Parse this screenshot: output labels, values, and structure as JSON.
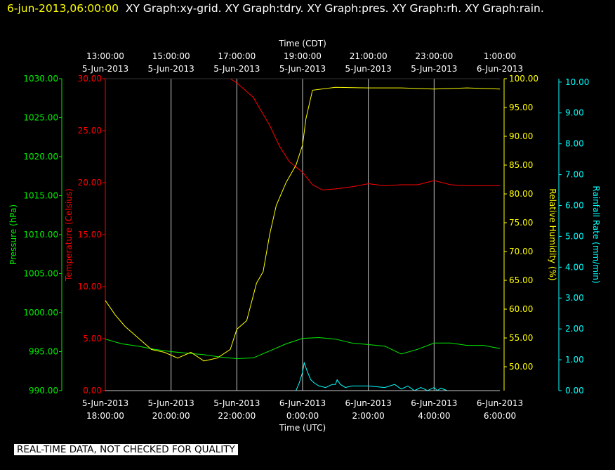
{
  "header": {
    "date": "6-jun-2013,06:00:00",
    "graphs": "XY Graph:xy-grid.  XY Graph:tdry.  XY Graph:pres.  XY Graph:rh.  XY Graph:rain."
  },
  "notice": "REAL-TIME DATA, NOT CHECKED FOR QUALITY",
  "colors": {
    "background": "#000000",
    "grid": "#c8c8c8",
    "temperature": "#ff0000",
    "pressure": "#00ee00",
    "humidity": "#ffff00",
    "rain": "#00ffff",
    "text": "#ffffff"
  },
  "chart_data": {
    "type": "line",
    "grid": true,
    "x_top": {
      "label": "Time (CDT)",
      "ticks": [
        [
          "13:00:00",
          "5-Jun-2013"
        ],
        [
          "15:00:00",
          "5-Jun-2013"
        ],
        [
          "17:00:00",
          "5-Jun-2013"
        ],
        [
          "19:00:00",
          "5-Jun-2013"
        ],
        [
          "21:00:00",
          "5-Jun-2013"
        ],
        [
          "23:00:00",
          "5-Jun-2013"
        ],
        [
          "1:00:00",
          "6-Jun-2013"
        ]
      ]
    },
    "x_bottom": {
      "label": "Time (UTC)",
      "ticks": [
        [
          "5-Jun-2013",
          "18:00:00"
        ],
        [
          "5-Jun-2013",
          "20:00:00"
        ],
        [
          "5-Jun-2013",
          "22:00:00"
        ],
        [
          "6-Jun-2013",
          "0:00:00"
        ],
        [
          "6-Jun-2013",
          "2:00:00"
        ],
        [
          "6-Jun-2013",
          "4:00:00"
        ],
        [
          "6-Jun-2013",
          "6:00:00"
        ]
      ]
    },
    "xlim_hours_utc": [
      18,
      30
    ],
    "series": [
      {
        "name": "Pressure (hPa)",
        "axis": "pressure",
        "ylim": [
          990,
          1030
        ],
        "ticks": [
          "990.00",
          "995.00",
          "1000.00",
          "1005.00",
          "1010.00",
          "1015.00",
          "1020.00",
          "1025.00",
          "1030.00"
        ],
        "x": [
          18.0,
          18.5,
          19.0,
          19.5,
          20.0,
          20.5,
          21.0,
          21.5,
          22.0,
          22.5,
          23.0,
          23.5,
          24.0,
          24.5,
          25.0,
          25.5,
          26.0,
          26.5,
          27.0,
          27.5,
          28.0,
          28.5,
          29.0,
          29.5,
          30.0
        ],
        "values": [
          996.6,
          996.0,
          995.7,
          995.3,
          995.0,
          994.8,
          994.6,
          994.3,
          994.1,
          994.2,
          995.1,
          996.0,
          996.7,
          996.8,
          996.6,
          996.1,
          995.9,
          995.7,
          994.7,
          995.3,
          996.1,
          996.1,
          995.8,
          995.8,
          995.4
        ]
      },
      {
        "name": "Temperature (Celsius)",
        "axis": "temperature",
        "ylim": [
          0,
          30
        ],
        "ticks": [
          "0.00",
          "5.00",
          "10.00",
          "15.00",
          "20.00",
          "25.00",
          "30.00"
        ],
        "x": [
          21.8,
          22.0,
          22.5,
          23.0,
          23.3,
          23.6,
          24.0,
          24.3,
          24.6,
          25.0,
          25.5,
          26.0,
          26.5,
          27.0,
          27.5,
          28.0,
          28.5,
          29.0,
          29.5,
          30.0
        ],
        "values": [
          30.0,
          29.6,
          28.2,
          25.5,
          23.5,
          22.0,
          21.0,
          19.8,
          19.3,
          19.4,
          19.6,
          19.9,
          19.7,
          19.8,
          19.8,
          20.2,
          19.8,
          19.7,
          19.7,
          19.7
        ]
      },
      {
        "name": "Relative Humidity (%)",
        "axis": "humidity",
        "ylim": [
          45.86,
          100
        ],
        "ticks": [
          "50.00",
          "55.00",
          "60.00",
          "65.00",
          "70.00",
          "75.00",
          "80.00",
          "85.00",
          "90.00",
          "95.00",
          "100.00"
        ],
        "x": [
          18.0,
          18.3,
          18.6,
          19.0,
          19.4,
          19.8,
          20.2,
          20.6,
          21.0,
          21.4,
          21.8,
          22.0,
          22.3,
          22.6,
          22.8,
          23.0,
          23.2,
          23.5,
          23.8,
          24.0,
          24.1,
          24.3,
          25.0,
          26.0,
          27.0,
          28.0,
          29.0,
          30.0
        ],
        "values": [
          61.5,
          59.0,
          57.0,
          55.0,
          53.0,
          52.5,
          51.5,
          52.5,
          51.0,
          51.5,
          53.0,
          56.5,
          58.0,
          64.5,
          66.5,
          73.0,
          78.0,
          82.0,
          85.0,
          88.5,
          93.0,
          98.0,
          98.5,
          98.4,
          98.4,
          98.2,
          98.4,
          98.2
        ]
      },
      {
        "name": "Rainfall Rate (mm/min)",
        "axis": "rain",
        "ylim": [
          0,
          10.11
        ],
        "ticks": [
          "0.00",
          "1.00",
          "2.00",
          "3.00",
          "4.00",
          "5.00",
          "6.00",
          "7.00",
          "8.00",
          "9.00",
          "10.00"
        ],
        "x": [
          18.0,
          23.8,
          23.9,
          24.0,
          24.05,
          24.15,
          24.25,
          24.35,
          24.5,
          24.7,
          24.9,
          25.0,
          25.05,
          25.15,
          25.3,
          25.5,
          26.0,
          26.5,
          26.8,
          27.0,
          27.2,
          27.4,
          27.6,
          27.8,
          28.0,
          28.1,
          28.2,
          28.4,
          30.0
        ],
        "values": [
          0.0,
          0.0,
          0.25,
          0.6,
          0.9,
          0.6,
          0.35,
          0.25,
          0.15,
          0.1,
          0.2,
          0.2,
          0.35,
          0.2,
          0.1,
          0.15,
          0.15,
          0.1,
          0.2,
          0.05,
          0.15,
          0.0,
          0.1,
          0.0,
          0.1,
          0.0,
          0.08,
          0.0,
          0.0
        ]
      }
    ]
  }
}
